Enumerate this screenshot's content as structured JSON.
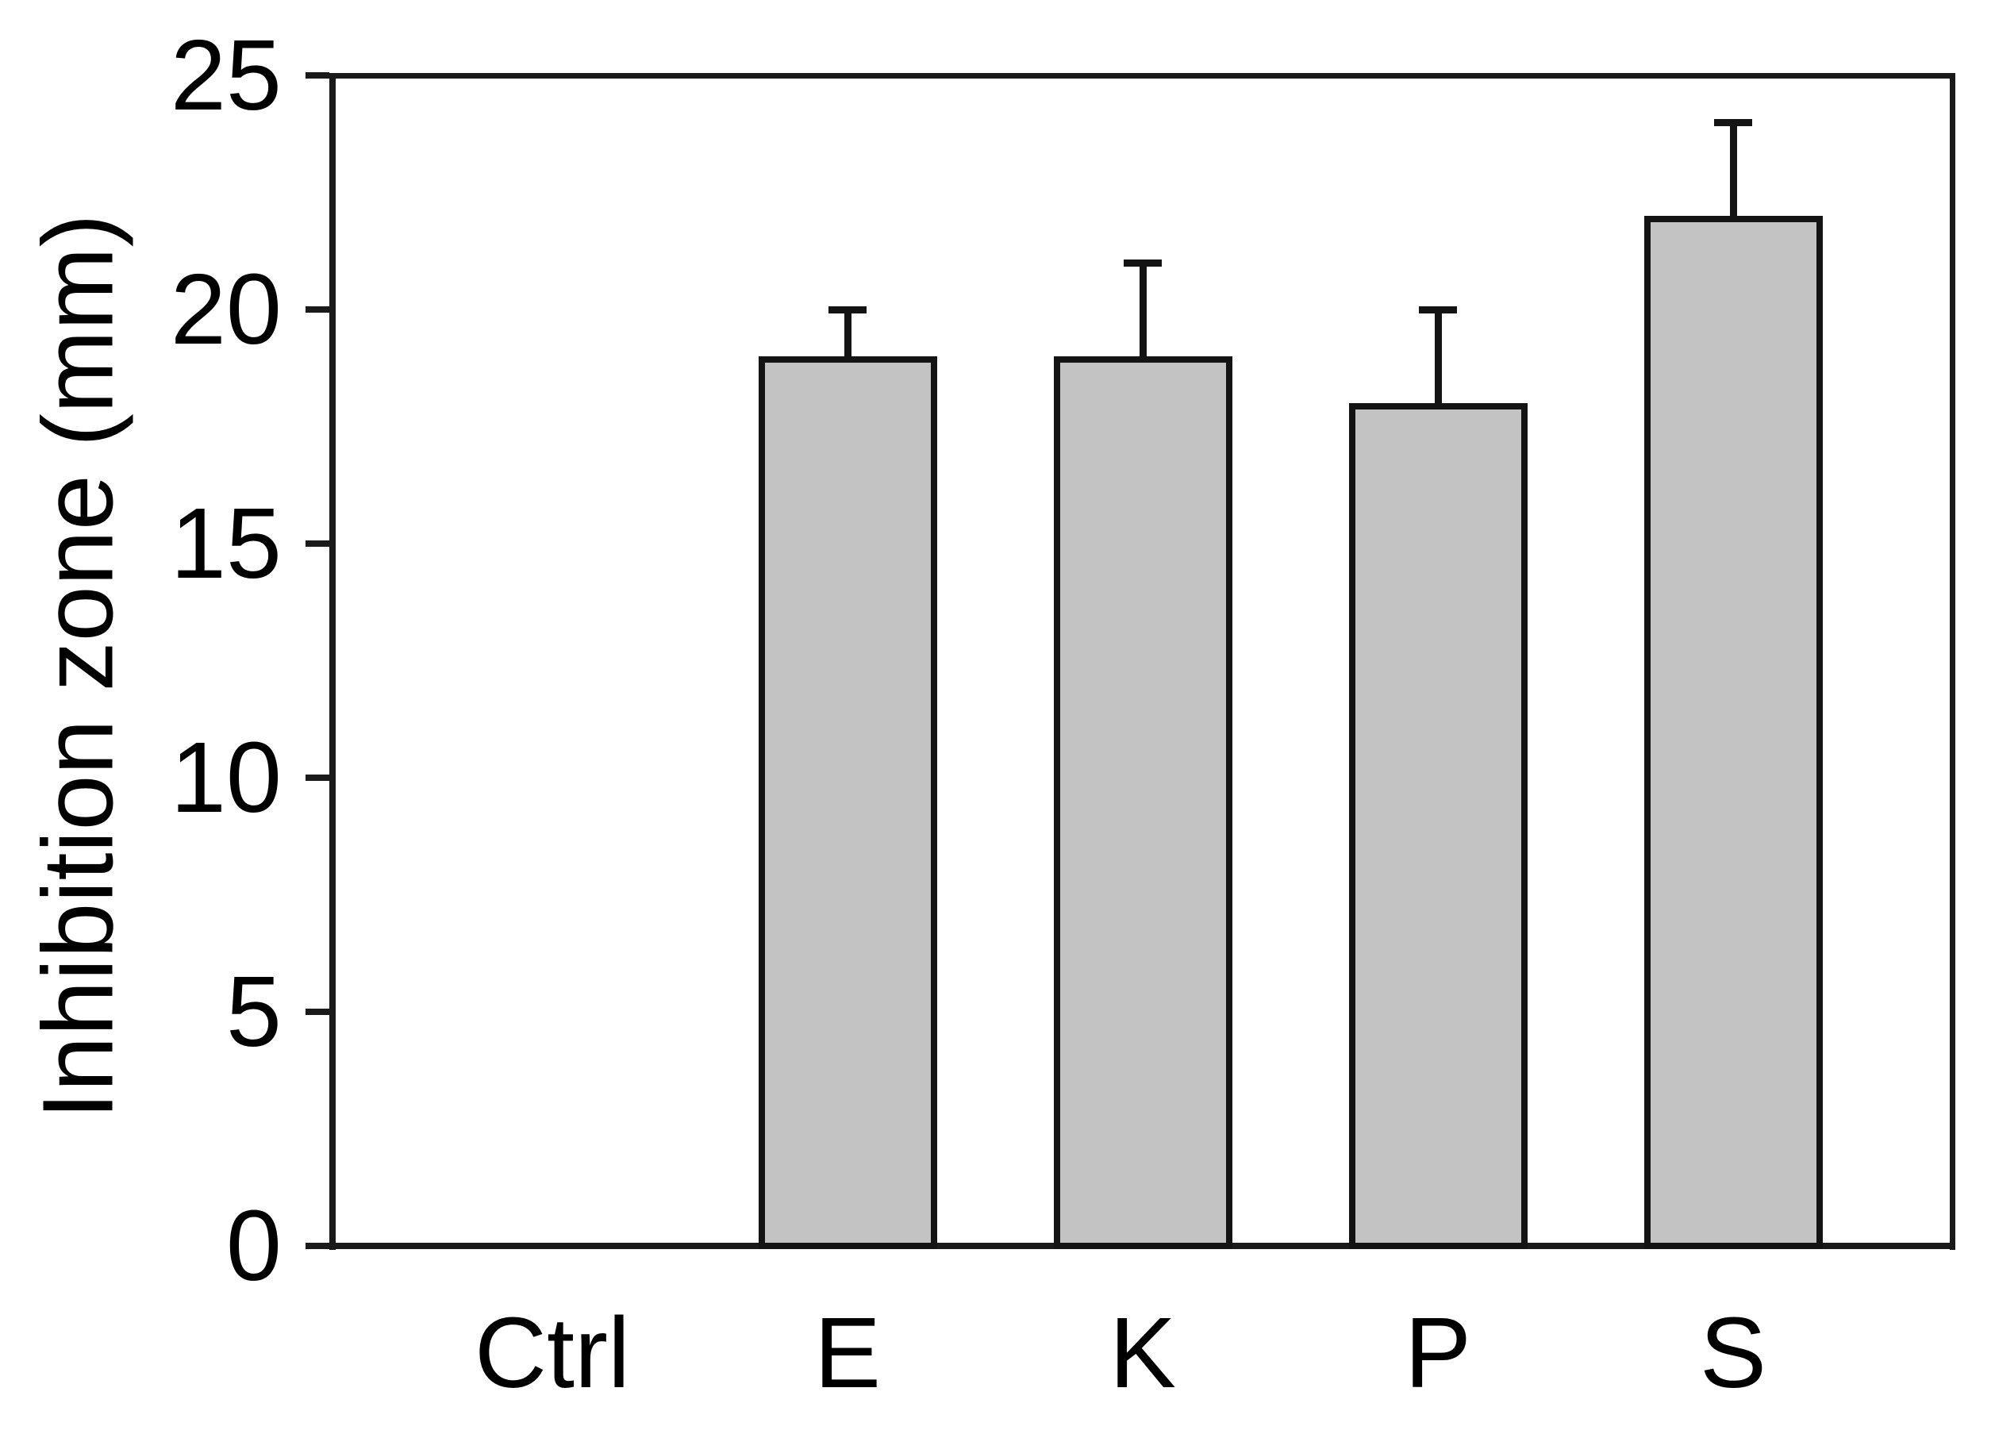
{
  "figure": {
    "background_color": "#ffffff",
    "text_color": "#000000"
  },
  "chart_data": {
    "type": "bar",
    "title": "",
    "categories": [
      "Ctrl",
      "E",
      "K",
      "P",
      "S"
    ],
    "values": [
      0,
      19,
      19,
      18,
      22
    ],
    "error_plus": [
      0,
      1,
      2,
      2,
      2
    ],
    "xlabel": "",
    "ylabel": "Inhibition zone (mm)",
    "ylim": [
      0,
      25
    ],
    "yticks": [
      0,
      5,
      10,
      15,
      20,
      25
    ],
    "grid": false,
    "legend": "none",
    "bar_fill_color": "#c2c3c2",
    "bar_border_color": "#141414",
    "axis_color": "#1a1a1a"
  }
}
